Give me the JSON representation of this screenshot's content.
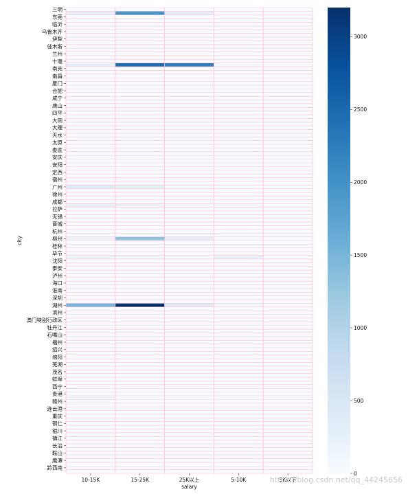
{
  "chart_data": {
    "type": "heatmap",
    "xlabel": "salary",
    "ylabel": "city",
    "x_categories": [
      "10-15K",
      "15-25K",
      "25K以上",
      "5-10K",
      "5K以下"
    ],
    "y_tick_labels": [
      "三明",
      "东莞",
      "临沂",
      "乌鲁木齐",
      "伊犁",
      "佳木斯",
      "兰州",
      "十堰",
      "南充",
      "南昌",
      "厦门",
      "合肥",
      "咸宁",
      "唐山",
      "四平",
      "大同",
      "大理",
      "天水",
      "太原",
      "娄底",
      "安庆",
      "安阳",
      "定西",
      "宿州",
      "广州",
      "徐州",
      "成都",
      "拉萨",
      "无锡",
      "晋城",
      "杭州",
      "柳州",
      "桂林",
      "毕节",
      "沈阳",
      "泰安",
      "泸州",
      "海口",
      "淮南",
      "深圳",
      "湖州",
      "滨州",
      "澳门特别行政区",
      "牡丹江",
      "石嘴山",
      "福州",
      "绍兴",
      "绵阳",
      "芜湖",
      "茂名",
      "蚌埠",
      "西宁",
      "贵港",
      "赣州",
      "连云港",
      "重庆",
      "铜仁",
      "银川",
      "镇江",
      "长治",
      "鞍山",
      "鹰潭",
      "黔西南"
    ],
    "cells": [
      {
        "row": 1,
        "col": 0,
        "value": 300
      },
      {
        "row": 1,
        "col": 1,
        "value": 1950
      },
      {
        "row": 1,
        "col": 2,
        "value": 350
      },
      {
        "row": 1,
        "col": 3,
        "value": 40
      },
      {
        "row": 15,
        "col": 0,
        "value": 300
      },
      {
        "row": 15,
        "col": 1,
        "value": 2450
      },
      {
        "row": 15,
        "col": 2,
        "value": 2250
      },
      {
        "row": 15,
        "col": 3,
        "value": 40
      },
      {
        "row": 40,
        "col": 0,
        "value": 20
      },
      {
        "row": 40,
        "col": 1,
        "value": 20
      },
      {
        "row": 48,
        "col": 0,
        "value": 400
      },
      {
        "row": 48,
        "col": 1,
        "value": 300
      },
      {
        "row": 48,
        "col": 2,
        "value": 40
      },
      {
        "row": 53,
        "col": 0,
        "value": 300
      },
      {
        "row": 53,
        "col": 1,
        "value": 200
      },
      {
        "row": 53,
        "col": 2,
        "value": 60
      },
      {
        "row": 53,
        "col": 3,
        "value": 100
      },
      {
        "row": 62,
        "col": 0,
        "value": 200
      },
      {
        "row": 62,
        "col": 1,
        "value": 1300
      },
      {
        "row": 62,
        "col": 2,
        "value": 350
      },
      {
        "row": 62,
        "col": 3,
        "value": 60
      },
      {
        "row": 67,
        "col": 0,
        "value": 200
      },
      {
        "row": 67,
        "col": 1,
        "value": 100
      },
      {
        "row": 67,
        "col": 2,
        "value": 50
      },
      {
        "row": 67,
        "col": 3,
        "value": 250
      },
      {
        "row": 80,
        "col": 0,
        "value": 1500
      },
      {
        "row": 80,
        "col": 1,
        "value": 3200
      },
      {
        "row": 80,
        "col": 2,
        "value": 400
      },
      {
        "row": 80,
        "col": 3,
        "value": 80
      },
      {
        "row": 105,
        "col": 0,
        "value": 100
      },
      {
        "row": 115,
        "col": 0,
        "value": 50
      },
      {
        "row": 118,
        "col": 0,
        "value": 30
      }
    ],
    "colorbar": {
      "ticks": [
        0,
        500,
        1000,
        1500,
        2000,
        2500,
        3000
      ],
      "vmin": 0,
      "vmax": 3200
    },
    "colormap": "Blues",
    "grid_line_color": "#ffc0cb"
  },
  "watermark": "https://blog.csdn.net/qq_44245656"
}
